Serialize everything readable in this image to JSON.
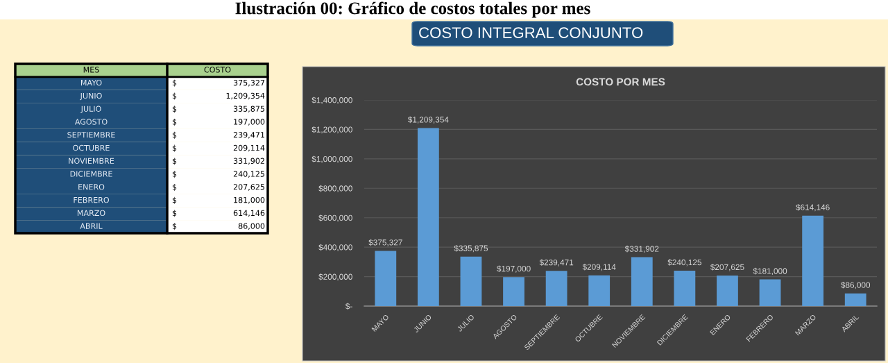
{
  "chart_data": [
    {
      "type": "other",
      "xlabel": "MES",
      "ylabel": "COSTO",
      "categories": [
        "MAYO",
        "JUNIO",
        "JULIO",
        "AGOSTO",
        "SEPTIEMBRE",
        "OCTUBRE",
        "NOVIEMBRE",
        "DICIEMBRE",
        "ENERO",
        "FEBRERO",
        "MARZO",
        "ABRIL"
      ],
      "values": [
        375327,
        1209354,
        335875,
        197000,
        239471,
        209114,
        331902,
        240125,
        207625,
        181000,
        614146,
        86000
      ],
      "value_labels": [
        "375,327",
        "1,209,354",
        "335,875",
        "197,000",
        "239,471",
        "209,114",
        "331,902",
        "240,125",
        "207,625",
        "181,000",
        "614,146",
        "86,000"
      ],
      "annotations": [
        "$"
      ]
    },
    {
      "type": "bar",
      "title": "COSTO POR MES",
      "categories": [
        "MAYO",
        "JUNIO",
        "JULIO",
        "AGOSTO",
        "SEPTIEMBRE",
        "OCTUBRE",
        "NOVIEMBRE",
        "DICIEMBRE",
        "ENERO",
        "FEBRERO",
        "MARZO",
        "ABRIL"
      ],
      "values": [
        375327,
        1209354,
        335875,
        197000,
        239471,
        209114,
        331902,
        240125,
        207625,
        181000,
        614146,
        86000
      ],
      "color": "#5b9bd5",
      "value_labels": [
        "$375,327",
        "$1,209,354",
        "$335,875",
        "$197,000",
        "$239,471",
        "$209,114",
        "$331,902",
        "$240,125",
        "$207,625",
        "$181,000",
        "$614,146",
        "$86,000"
      ],
      "ylim": [
        0,
        1400000
      ],
      "yticks": [
        {
          "value": 0,
          "label": "$-"
        },
        {
          "value": 200000,
          "label": "$200,000"
        },
        {
          "value": 400000,
          "label": "$400,000"
        },
        {
          "value": 600000,
          "label": "$600,000"
        },
        {
          "value": 800000,
          "label": "$800,000"
        },
        {
          "value": 1000000,
          "label": "$1,000,000"
        },
        {
          "value": 1200000,
          "label": "$1,200,000"
        },
        {
          "value": 1400000,
          "label": "$1,400,000"
        }
      ],
      "grid": "y",
      "annotations": [
        "Ilustración 00: Gráfico de costos totales por mes",
        "COSTO INTEGRAL CONJUNTO"
      ]
    }
  ]
}
